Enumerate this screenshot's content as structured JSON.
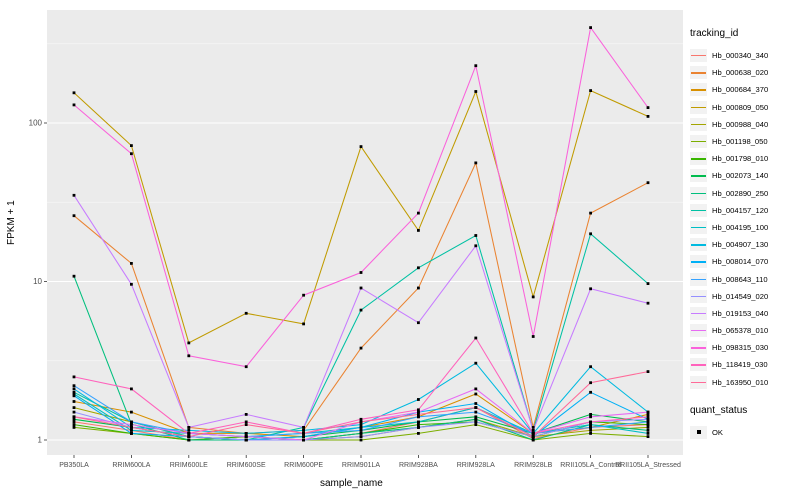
{
  "chart_data": {
    "type": "line",
    "title": "",
    "xlabel": "sample_name",
    "ylabel": "FPKM + 1",
    "y_scale": "log10",
    "y_ticks": [
      "1",
      "10",
      "100"
    ],
    "y_tick_values": [
      1,
      10,
      100
    ],
    "y_minor_values": [
      3.162,
      31.62,
      316.2
    ],
    "ylim": [
      1,
      516
    ],
    "grid": "on",
    "legend": {
      "title": "tracking_id",
      "position": "right"
    },
    "quant_legend": {
      "title": "quant_status",
      "items": [
        {
          "label": "OK",
          "marker": "black-square"
        }
      ]
    },
    "panel": {
      "bg": "#EBEBEB",
      "grid_major": "#FFFFFF",
      "grid_minor": "#F5F5F5",
      "marker_color": "#000000",
      "tick_color": "#333333",
      "axis_text_color": "#4D4D4D"
    },
    "categories": [
      "PB350LA",
      "RRIM600LA",
      "RRIM600LE",
      "RRIM600SE",
      "RRIM600PE",
      "RRIM901LA",
      "RRIM928BA",
      "RRIM928LA",
      "RRIM928LB",
      "RRII105LA_Control",
      "RRII105LA_Stressed"
    ],
    "series": [
      {
        "name": "Hb_000340_340",
        "color": "#F8766D",
        "values": [
          1.3,
          1.15,
          1.0,
          1.05,
          1.0,
          1.1,
          1.3,
          1.6,
          1.02,
          1.2,
          1.25
        ]
      },
      {
        "name": "Hb_000638_020",
        "color": "#EA8331",
        "values": [
          26,
          13,
          1.2,
          1.1,
          1.15,
          3.8,
          9.1,
          56,
          1.2,
          27,
          42
        ]
      },
      {
        "name": "Hb_000684_370",
        "color": "#D89000",
        "values": [
          1.75,
          1.5,
          1.1,
          1.1,
          1.05,
          1.2,
          1.4,
          1.95,
          1.1,
          1.2,
          1.45
        ]
      },
      {
        "name": "Hb_000809_050",
        "color": "#C09B00",
        "values": [
          155,
          72,
          4.1,
          6.3,
          5.4,
          71,
          21,
          158,
          8.0,
          160,
          110
        ]
      },
      {
        "name": "Hb_000988_040",
        "color": "#A3A500",
        "values": [
          1.6,
          1.3,
          1.05,
          1.0,
          1.0,
          1.05,
          1.2,
          1.35,
          1.05,
          1.15,
          1.2
        ]
      },
      {
        "name": "Hb_001198_050",
        "color": "#7CAE00",
        "values": [
          1.2,
          1.1,
          1.0,
          1.0,
          1.0,
          1.0,
          1.1,
          1.25,
          1.0,
          1.1,
          1.05
        ]
      },
      {
        "name": "Hb_001798_010",
        "color": "#39B600",
        "values": [
          1.25,
          1.1,
          1.0,
          1.05,
          1.0,
          1.1,
          1.25,
          1.3,
          1.05,
          1.3,
          1.25
        ]
      },
      {
        "name": "Hb_002073_140",
        "color": "#00BB4E",
        "values": [
          1.35,
          1.2,
          1.05,
          1.0,
          1.05,
          1.15,
          1.3,
          1.4,
          1.1,
          1.45,
          1.3
        ]
      },
      {
        "name": "Hb_002890_250",
        "color": "#00BF7D",
        "values": [
          10.8,
          1.26,
          1.0,
          1.0,
          1.0,
          1.1,
          1.2,
          1.35,
          1.0,
          1.25,
          1.15
        ]
      },
      {
        "name": "Hb_004157_120",
        "color": "#00C1A3",
        "values": [
          2.0,
          1.3,
          1.05,
          1.0,
          1.2,
          6.6,
          12.2,
          19.5,
          1.15,
          20,
          9.7
        ]
      },
      {
        "name": "Hb_004195_100",
        "color": "#00BFC4",
        "values": [
          1.95,
          1.15,
          1.1,
          1.05,
          1.1,
          1.2,
          1.3,
          1.6,
          1.1,
          1.25,
          1.1
        ]
      },
      {
        "name": "Hb_004907_130",
        "color": "#00BAE0",
        "values": [
          2.1,
          1.2,
          1.15,
          1.1,
          1.15,
          1.25,
          1.8,
          3.05,
          1.1,
          2.9,
          1.5
        ]
      },
      {
        "name": "Hb_008014_070",
        "color": "#00B0F6",
        "values": [
          1.9,
          1.1,
          1.05,
          1.0,
          1.05,
          1.2,
          1.5,
          1.7,
          1.05,
          2.0,
          1.35
        ]
      },
      {
        "name": "Hb_008643_110",
        "color": "#35A2FF",
        "values": [
          2.2,
          1.3,
          1.1,
          1.05,
          1.1,
          1.15,
          1.4,
          1.5,
          1.1,
          1.2,
          1.3
        ]
      },
      {
        "name": "Hb_014549_020",
        "color": "#9590FF",
        "values": [
          1.5,
          1.2,
          1.05,
          1.0,
          1.0,
          1.05,
          1.2,
          1.3,
          1.05,
          1.3,
          1.35
        ]
      },
      {
        "name": "Hb_019153_040",
        "color": "#C77CFF",
        "values": [
          35,
          9.6,
          1.2,
          1.45,
          1.2,
          9.1,
          5.5,
          16.8,
          1.15,
          9.0,
          7.3
        ]
      },
      {
        "name": "Hb_065378_010",
        "color": "#E76BF3",
        "values": [
          1.4,
          1.25,
          1.1,
          1.05,
          1.0,
          1.3,
          1.5,
          2.1,
          1.1,
          1.4,
          1.5
        ]
      },
      {
        "name": "Hb_098315_030",
        "color": "#FA62DB",
        "values": [
          130,
          64,
          3.4,
          2.9,
          8.2,
          11.4,
          27,
          230,
          4.5,
          400,
          125
        ]
      },
      {
        "name": "Hb_118419_030",
        "color": "#FF62BC",
        "values": [
          2.5,
          2.1,
          1.1,
          1.3,
          1.1,
          1.35,
          1.55,
          4.4,
          1.1,
          1.3,
          1.4
        ]
      },
      {
        "name": "Hb_163950_010",
        "color": "#FF6A98",
        "values": [
          1.4,
          1.2,
          1.05,
          1.25,
          1.1,
          1.3,
          1.45,
          1.6,
          1.05,
          2.3,
          2.7
        ]
      }
    ]
  }
}
